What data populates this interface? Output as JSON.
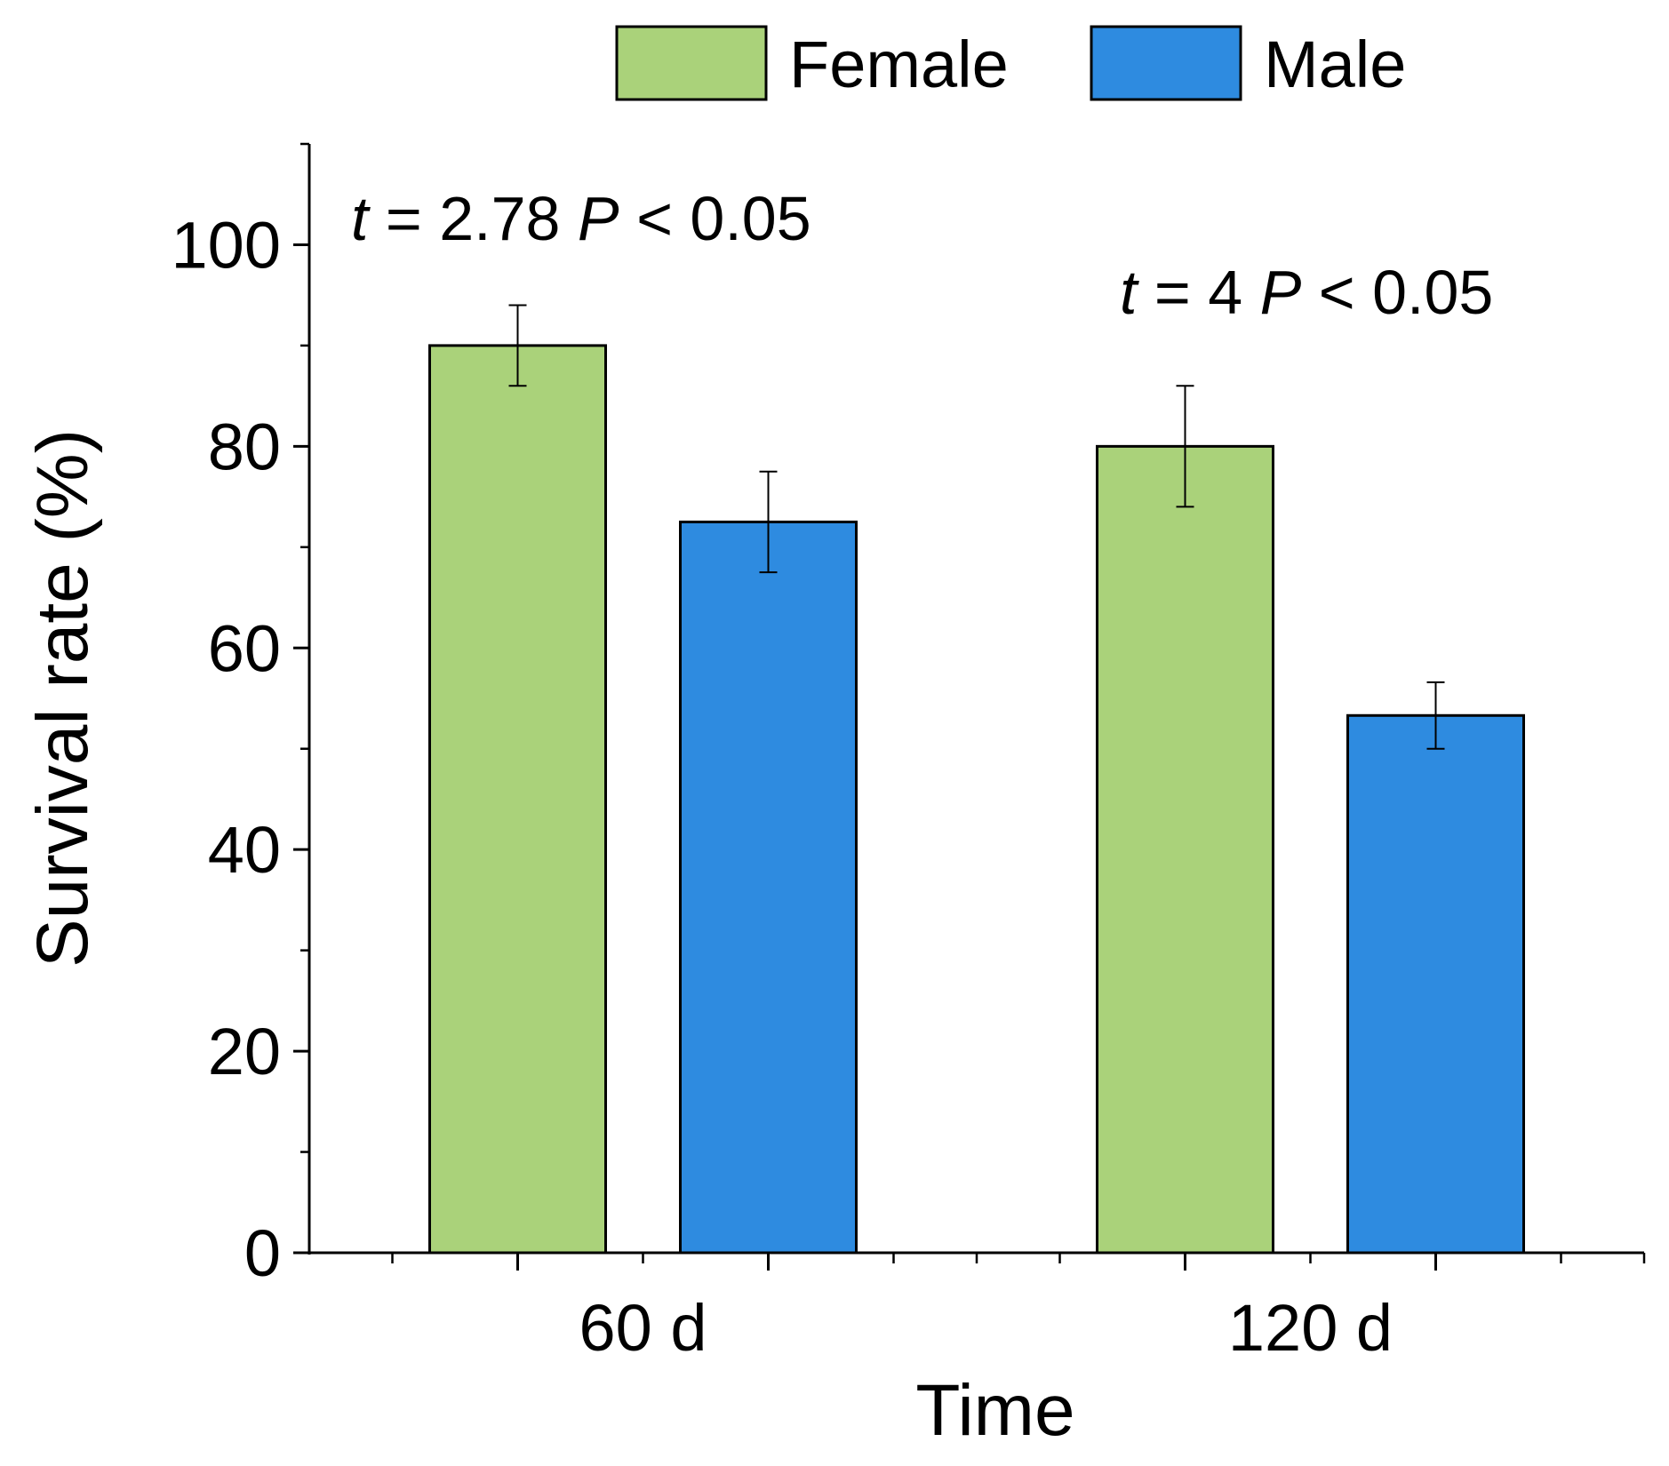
{
  "chart_data": {
    "type": "bar",
    "categories": [
      "60 d",
      "120 d"
    ],
    "series": [
      {
        "name": "Female",
        "color": "#aad27a",
        "values": [
          90,
          80
        ],
        "errors": [
          4,
          6
        ]
      },
      {
        "name": "Male",
        "color": "#2e8be0",
        "values": [
          72.5,
          53.3
        ],
        "errors": [
          5,
          3.3
        ]
      }
    ],
    "xlabel": "Time",
    "ylabel": "Survival rate (%)",
    "ylim": [
      0,
      110
    ],
    "yticks": [
      0,
      20,
      40,
      60,
      80,
      100
    ],
    "yticks_labels": [
      "0",
      "20",
      "40",
      "60",
      "80",
      "100"
    ],
    "legend_position": "top",
    "grid": false,
    "annotations": [
      {
        "category": "60 d",
        "t_symbol": "t",
        "t_rest": " = 2.78  ",
        "p_symbol": "P",
        "p_rest": " < 0.05"
      },
      {
        "category": "120 d",
        "t_symbol": "t",
        "t_rest": " = 4  ",
        "p_symbol": "P",
        "p_rest": " < 0.05"
      }
    ]
  }
}
